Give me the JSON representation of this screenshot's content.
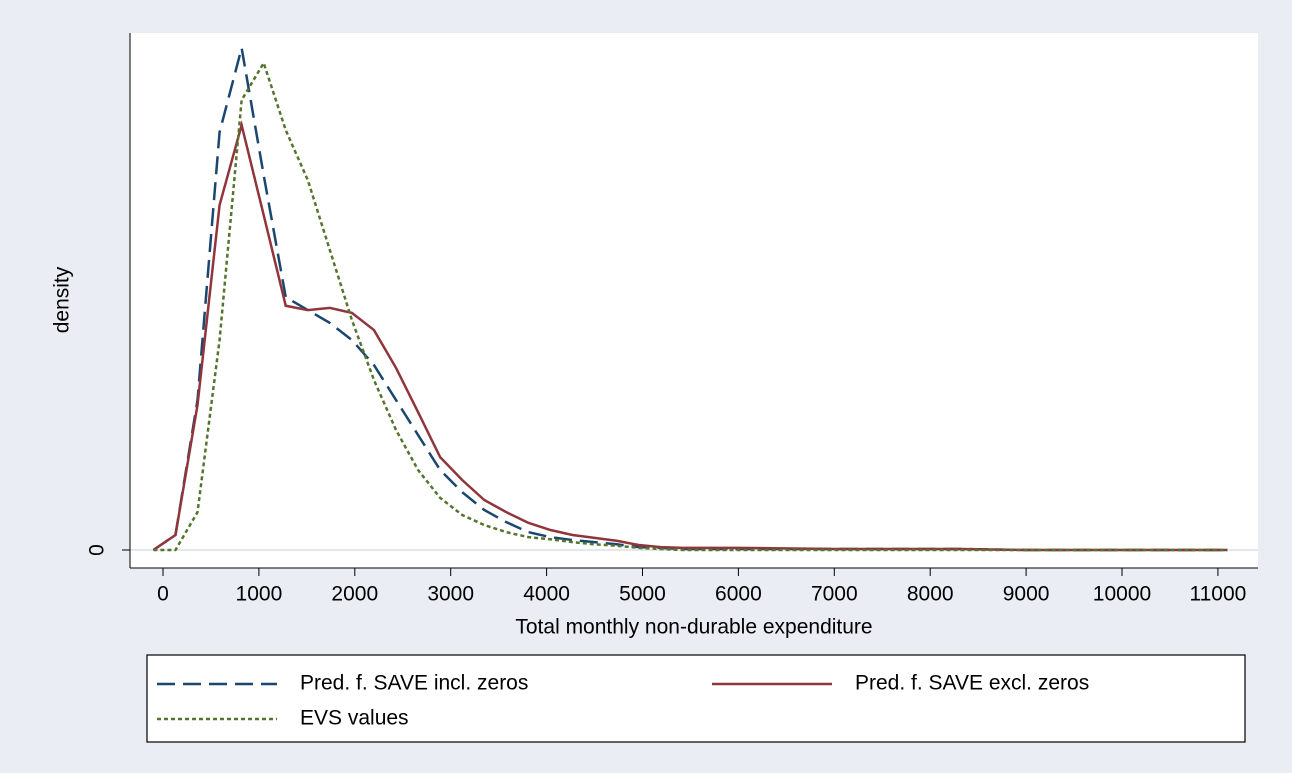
{
  "chart_data": {
    "type": "line",
    "x_label": "Total monthly non-durable expenditure",
    "y_label": "density",
    "x": [
      -100,
      130,
      360,
      590,
      820,
      1050,
      1280,
      1510,
      1740,
      1970,
      2200,
      2430,
      2660,
      2890,
      3120,
      3350,
      3580,
      3810,
      4040,
      4270,
      4500,
      4730,
      4960,
      5190,
      5420,
      6000,
      7000,
      8300,
      9000,
      10000,
      11100
    ],
    "series": [
      {
        "name": "Pred. f. SAVE incl. zeros",
        "color": "#1a476f",
        "dash": "dashed",
        "values": [
          0,
          2.1e-05,
          0.00021,
          0.000585,
          0.000703,
          0.000525,
          0.000354,
          0.000336,
          0.000318,
          0.000294,
          0.000259,
          0.00021,
          0.000161,
          0.000112,
          8.1e-05,
          5.6e-05,
          3.9e-05,
          2.5e-05,
          1.8e-05,
          1.4e-05,
          1.1e-05,
          8e-06,
          4e-06,
          3e-06,
          1.4e-06,
          1.4e-06,
          1.4e-06,
          1.4e-06,
          0,
          0,
          0
        ]
      },
      {
        "name": "Pred. f. SAVE excl. zeros",
        "color": "#90353b",
        "dash": "solid",
        "values": [
          0,
          2.1e-05,
          0.000203,
          0.000483,
          0.000595,
          0.000469,
          0.000342,
          0.000336,
          0.000339,
          0.000332,
          0.000308,
          0.000255,
          0.000193,
          0.00013,
          9.8e-05,
          7e-05,
          5.3e-05,
          3.8e-05,
          2.8e-05,
          2.1e-05,
          1.7e-05,
          1.3e-05,
          7e-06,
          4e-06,
          3e-06,
          3e-06,
          1.4e-06,
          1.4e-06,
          0,
          0,
          0
        ]
      },
      {
        "name": "EVS values",
        "color": "#55752f",
        "dash": "dotted",
        "values": [
          0,
          0,
          5.3e-05,
          0.000294,
          0.00063,
          0.000682,
          0.000588,
          0.000518,
          0.00042,
          0.000322,
          0.000238,
          0.000168,
          0.000112,
          7.3e-05,
          4.9e-05,
          3.5e-05,
          2.5e-05,
          1.8e-05,
          1.5e-05,
          1.1e-05,
          8e-06,
          6e-06,
          3e-06,
          1.4e-06,
          0,
          0,
          0,
          0,
          0,
          0,
          0
        ]
      }
    ],
    "xlim": [
      -344,
      11418
    ],
    "xticks": [
      0,
      1000,
      2000,
      3000,
      4000,
      5000,
      6000,
      7000,
      8000,
      9000,
      10000,
      11000
    ],
    "ylim": [
      -2.52e-05,
      0.000724
    ],
    "yticks": [
      0
    ],
    "grid": true,
    "legend": "bottom"
  }
}
